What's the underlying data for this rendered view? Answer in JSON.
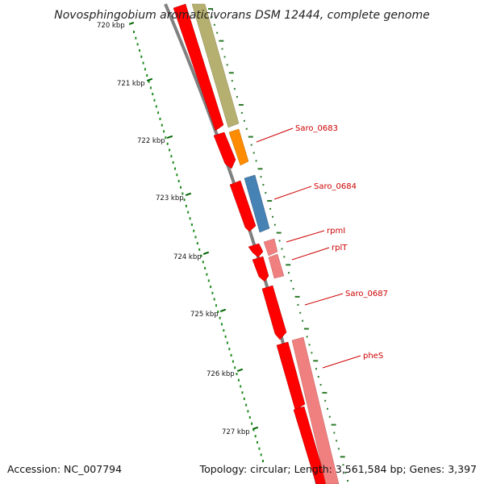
{
  "title": "Novosphingobium aromaticivorans DSM 12444, complete genome",
  "accession": "Accession: NC_007794",
  "topology_line": "Topology: circular; Length: 3,561,584 bp; Genes: 3,397",
  "kbp_ticks": [
    "720 kbp",
    "721 kbp",
    "722 kbp",
    "723 kbp",
    "724 kbp",
    "725 kbp",
    "726 kbp",
    "727 kbp"
  ],
  "gene_labels": [
    "Saro_0683",
    "Saro_0684",
    "rpmI",
    "rplT",
    "Saro_0687",
    "pheS"
  ],
  "colors": {
    "cds_red": "#ff0000",
    "feature_olive": "#b5b070",
    "feature_orange": "#ff8c00",
    "feature_blue": "#4682b4",
    "feature_pink": "#f08080",
    "backbone_gray": "#808080",
    "tick_green": "#006400",
    "label_red": "#cc0000"
  }
}
